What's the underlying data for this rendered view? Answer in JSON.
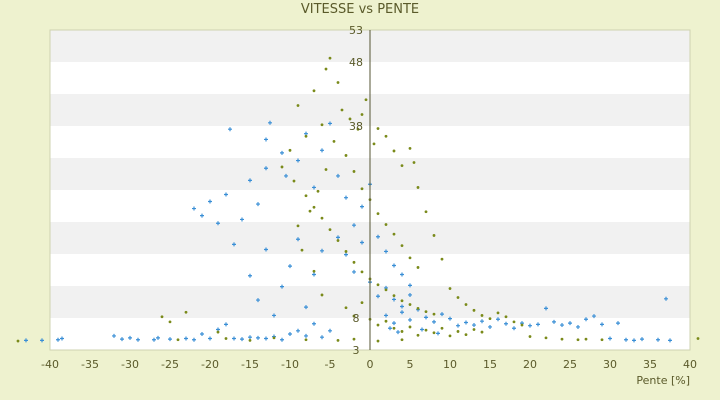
{
  "chart_data": {
    "type": "scatter",
    "title": "VITESSE vs PENTE",
    "xlabel": "Pente [%]",
    "ylabel": "",
    "xlim": [
      -40,
      40
    ],
    "ylim": [
      3,
      53
    ],
    "x_ticks": [
      -40,
      -35,
      -30,
      -25,
      -20,
      -15,
      -10,
      -5,
      0,
      5,
      10,
      15,
      20,
      25,
      30,
      35,
      40
    ],
    "y_ticks": [
      3,
      8,
      13,
      18,
      23,
      28,
      33,
      38,
      43,
      48,
      53
    ],
    "y_tick_labels_shown": [
      3,
      8,
      38,
      48,
      53
    ],
    "grid": "horizontal bands",
    "legend": "none",
    "series": [
      {
        "color": "#3a8fd6",
        "marker": "plus",
        "points": [
          [
            -43,
            4.5
          ],
          [
            -41,
            4.5
          ],
          [
            -39,
            4.6
          ],
          [
            -38.5,
            4.8
          ],
          [
            -32,
            5.2
          ],
          [
            -31,
            4.7
          ],
          [
            -30,
            4.9
          ],
          [
            -29,
            4.6
          ],
          [
            -27,
            4.6
          ],
          [
            -26.5,
            4.9
          ],
          [
            -25,
            4.7
          ],
          [
            -23,
            4.8
          ],
          [
            -22,
            4.6
          ],
          [
            -21,
            5.5
          ],
          [
            -20,
            4.8
          ],
          [
            -19,
            6.2
          ],
          [
            -18,
            7.0
          ],
          [
            -17,
            4.8
          ],
          [
            -16,
            4.7
          ],
          [
            -15,
            5.0
          ],
          [
            -14,
            4.9
          ],
          [
            -13,
            4.8
          ],
          [
            -12,
            5.1
          ],
          [
            -11,
            4.6
          ],
          [
            -10,
            5.5
          ],
          [
            -9,
            6.0
          ],
          [
            -8,
            5.2
          ],
          [
            -7,
            7.1
          ],
          [
            -6,
            5.0
          ],
          [
            -5,
            6.0
          ],
          [
            -22,
            25.1
          ],
          [
            -21,
            24.0
          ],
          [
            -20,
            26.2
          ],
          [
            -19,
            22.8
          ],
          [
            -18,
            27.3
          ],
          [
            -17,
            19.5
          ],
          [
            -16,
            23.4
          ],
          [
            -15,
            29.5
          ],
          [
            -14,
            25.8
          ],
          [
            -13,
            31.4
          ],
          [
            -17.5,
            37.5
          ],
          [
            -13,
            35.9
          ],
          [
            -12.5,
            38.5
          ],
          [
            -11,
            33.8
          ],
          [
            -10.5,
            30.2
          ],
          [
            -9,
            32.6
          ],
          [
            -8,
            36.8
          ],
          [
            -7,
            28.4
          ],
          [
            -6,
            34.2
          ],
          [
            -5,
            38.4
          ],
          [
            -15,
            14.6
          ],
          [
            -14,
            10.8
          ],
          [
            -13,
            18.7
          ],
          [
            -12,
            8.4
          ],
          [
            -11,
            12.9
          ],
          [
            -10,
            16.1
          ],
          [
            -9,
            20.3
          ],
          [
            -8,
            9.7
          ],
          [
            -7,
            14.8
          ],
          [
            -6,
            18.5
          ],
          [
            -4,
            30.2
          ],
          [
            -3,
            26.8
          ],
          [
            -2,
            22.5
          ],
          [
            -1,
            25.4
          ],
          [
            0,
            28.9
          ],
          [
            1,
            20.7
          ],
          [
            2,
            18.4
          ],
          [
            3,
            16.2
          ],
          [
            4,
            14.8
          ],
          [
            5,
            13.1
          ],
          [
            -4,
            20.6
          ],
          [
            -3,
            17.9
          ],
          [
            -2,
            15.2
          ],
          [
            -1,
            19.8
          ],
          [
            0,
            13.6
          ],
          [
            1,
            11.4
          ],
          [
            2,
            12.7
          ],
          [
            3,
            10.9
          ],
          [
            4,
            9.8
          ],
          [
            5,
            11.6
          ],
          [
            2,
            8.4
          ],
          [
            3,
            7.2
          ],
          [
            4,
            8.9
          ],
          [
            5,
            7.7
          ],
          [
            6,
            9.3
          ],
          [
            7,
            8.1
          ],
          [
            8,
            7.4
          ],
          [
            9,
            8.6
          ],
          [
            10,
            7.9
          ],
          [
            11,
            6.8
          ],
          [
            12,
            7.3
          ],
          [
            13,
            6.9
          ],
          [
            14,
            7.5
          ],
          [
            15,
            6.6
          ],
          [
            16,
            7.8
          ],
          [
            17,
            7.1
          ],
          [
            18,
            6.4
          ],
          [
            19,
            7.2
          ],
          [
            20,
            6.8
          ],
          [
            21,
            7.0
          ],
          [
            22,
            9.5
          ],
          [
            23,
            7.4
          ],
          [
            24,
            6.9
          ],
          [
            25,
            7.2
          ],
          [
            26,
            6.6
          ],
          [
            27,
            7.8
          ],
          [
            28,
            8.3
          ],
          [
            29,
            7.0
          ],
          [
            31,
            7.2
          ],
          [
            37,
            11.0
          ],
          [
            30,
            4.8
          ],
          [
            32,
            4.6
          ],
          [
            33,
            4.5
          ],
          [
            36,
            4.6
          ],
          [
            37.5,
            4.5
          ],
          [
            34,
            4.7
          ],
          [
            2.5,
            6.4
          ],
          [
            3.5,
            5.8
          ],
          [
            6.5,
            6.2
          ],
          [
            8.5,
            5.6
          ]
        ]
      },
      {
        "color": "#7a8a1a",
        "marker": "dot",
        "points": [
          [
            -44,
            4.4
          ],
          [
            -24,
            4.6
          ],
          [
            -18,
            4.8
          ],
          [
            -15,
            4.5
          ],
          [
            -12,
            4.9
          ],
          [
            -8,
            4.6
          ],
          [
            -4,
            4.5
          ],
          [
            -2,
            4.7
          ],
          [
            1,
            4.4
          ],
          [
            4,
            4.6
          ],
          [
            -26,
            8.2
          ],
          [
            -25,
            7.4
          ],
          [
            -23,
            8.9
          ],
          [
            -19,
            5.8
          ],
          [
            -9,
            22.4
          ],
          [
            -8.5,
            18.6
          ],
          [
            -7.5,
            24.7
          ],
          [
            -6.5,
            27.8
          ],
          [
            -5.5,
            31.2
          ],
          [
            -4.5,
            35.6
          ],
          [
            -5,
            48.6
          ],
          [
            -5.5,
            46.9
          ],
          [
            -4,
            44.8
          ],
          [
            -7,
            43.5
          ],
          [
            -9,
            41.2
          ],
          [
            -3.5,
            40.5
          ],
          [
            -2.5,
            39.1
          ],
          [
            -6,
            38.2
          ],
          [
            -8,
            36.4
          ],
          [
            -1.5,
            37.5
          ],
          [
            -10,
            34.2
          ],
          [
            -11,
            31.6
          ],
          [
            -9.5,
            29.4
          ],
          [
            -8,
            27.1
          ],
          [
            -7,
            25.3
          ],
          [
            -6,
            23.6
          ],
          [
            -5,
            21.8
          ],
          [
            -4,
            20.1
          ],
          [
            -3,
            18.4
          ],
          [
            -2,
            16.7
          ],
          [
            -1,
            15.2
          ],
          [
            0,
            14.1
          ],
          [
            1,
            13.2
          ],
          [
            2,
            12.4
          ],
          [
            3,
            11.5
          ],
          [
            4,
            10.7
          ],
          [
            5,
            10.1
          ],
          [
            6,
            9.5
          ],
          [
            7,
            9.0
          ],
          [
            8,
            8.6
          ],
          [
            -3,
            33.4
          ],
          [
            -2,
            30.9
          ],
          [
            -1,
            28.2
          ],
          [
            0,
            26.5
          ],
          [
            1,
            24.3
          ],
          [
            2,
            22.6
          ],
          [
            3,
            21.1
          ],
          [
            4,
            19.3
          ],
          [
            5,
            17.4
          ],
          [
            6,
            15.9
          ],
          [
            1,
            37.6
          ],
          [
            2,
            36.4
          ],
          [
            3,
            34.1
          ],
          [
            4,
            31.8
          ],
          [
            5,
            34.5
          ],
          [
            5.5,
            32.3
          ],
          [
            6,
            28.4
          ],
          [
            7,
            24.6
          ],
          [
            8,
            20.9
          ],
          [
            9,
            17.2
          ],
          [
            10,
            12.6
          ],
          [
            11,
            11.2
          ],
          [
            12,
            10.1
          ],
          [
            13,
            9.2
          ],
          [
            14,
            8.4
          ],
          [
            15,
            7.9
          ],
          [
            16,
            8.8
          ],
          [
            17,
            8.2
          ],
          [
            18,
            7.4
          ],
          [
            19,
            6.9
          ],
          [
            -3,
            9.6
          ],
          [
            -2,
            8.3
          ],
          [
            -1,
            10.4
          ],
          [
            0,
            7.8
          ],
          [
            1,
            6.9
          ],
          [
            2,
            7.5
          ],
          [
            3,
            6.4
          ],
          [
            4,
            5.9
          ],
          [
            5,
            6.6
          ],
          [
            6,
            5.3
          ],
          [
            7,
            6.1
          ],
          [
            8,
            5.7
          ],
          [
            9,
            6.4
          ],
          [
            10,
            5.2
          ],
          [
            11,
            5.9
          ],
          [
            12,
            5.4
          ],
          [
            13,
            6.2
          ],
          [
            14,
            5.8
          ],
          [
            20,
            5.1
          ],
          [
            22,
            4.9
          ],
          [
            24,
            4.7
          ],
          [
            26,
            4.6
          ],
          [
            27,
            4.7
          ],
          [
            29,
            4.6
          ],
          [
            41,
            4.8
          ],
          [
            -0.5,
            42.1
          ],
          [
            -1,
            39.8
          ],
          [
            0.5,
            35.2
          ],
          [
            -6,
            11.6
          ],
          [
            -7,
            15.3
          ]
        ]
      }
    ]
  }
}
